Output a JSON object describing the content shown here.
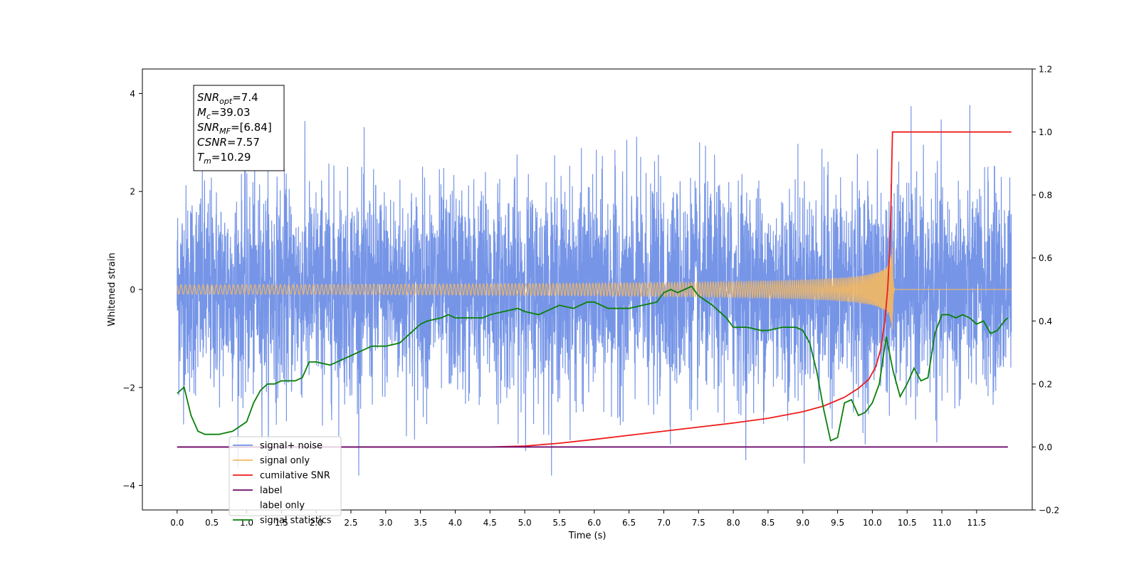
{
  "chart_data": {
    "type": "line",
    "xlabel": "Time (s)",
    "ylabel": "Whitened strain",
    "xlim": [
      -0.5,
      12.3
    ],
    "ylim_left": [
      -4.5,
      4.5
    ],
    "ylim_right": [
      -0.2,
      1.2
    ],
    "x_ticks": [
      "0.0",
      "0.5",
      "1.0",
      "1.5",
      "2.0",
      "2.5",
      "3.0",
      "3.5",
      "4.0",
      "4.5",
      "5.0",
      "5.5",
      "6.0",
      "6.5",
      "7.0",
      "7.5",
      "8.0",
      "8.5",
      "9.0",
      "9.5",
      "10.0",
      "10.5",
      "11.0",
      "11.5"
    ],
    "y_ticks_left": [
      "−4",
      "−2",
      "0",
      "2",
      "4"
    ],
    "y_ticks_right": [
      "−0.2",
      "0.0",
      "0.2",
      "0.4",
      "0.6",
      "0.8",
      "1.0",
      "1.2"
    ],
    "grid": false,
    "legend_location": "lower-left",
    "annotation": {
      "lines": [
        {
          "sym": "SNR",
          "sub": "opt",
          "val": "=7.4"
        },
        {
          "sym": "M",
          "sub": "c",
          "val": "=39.03"
        },
        {
          "sym": "SNR",
          "sub": "MF",
          "val": "=[6.84]"
        },
        {
          "sym": "CSNR",
          "sub": "",
          "val": "=7.57"
        },
        {
          "sym": "T",
          "sub": "m",
          "val": "=10.29"
        }
      ]
    },
    "series": [
      {
        "name": "signal+ noise",
        "axis": "left",
        "color": "#6f8fe6",
        "kind": "noise",
        "x_range": [
          0.0,
          12.0
        ],
        "amplitude_range": [
          -3.8,
          4.1
        ]
      },
      {
        "name": "signal only",
        "axis": "left",
        "color": "#f5b860",
        "kind": "chirp",
        "x_range": [
          0.0,
          12.0
        ],
        "merger_time": 10.29,
        "peak_amplitude": 0.85
      },
      {
        "name": "cumilative SNR",
        "axis": "right",
        "color": "#ee1c1c",
        "x": [
          0.0,
          4.5,
          5.0,
          5.5,
          6.0,
          6.5,
          7.0,
          7.5,
          8.0,
          8.5,
          9.0,
          9.3,
          9.6,
          9.8,
          9.95,
          10.05,
          10.12,
          10.18,
          10.22,
          10.25,
          10.27,
          10.28,
          10.29,
          10.32,
          12.0
        ],
        "y": [
          0.0,
          0.0,
          0.003,
          0.012,
          0.024,
          0.037,
          0.05,
          0.063,
          0.076,
          0.091,
          0.112,
          0.13,
          0.158,
          0.186,
          0.215,
          0.255,
          0.31,
          0.4,
          0.5,
          0.62,
          0.78,
          0.9,
          1.0,
          1.0,
          1.0
        ]
      },
      {
        "name": "label",
        "axis": "right",
        "color": "#6d0a6d",
        "x": [
          0.0,
          11.95
        ],
        "y": [
          0.0,
          0.0
        ]
      },
      {
        "name": "label only",
        "axis": "right",
        "color": "#000000",
        "hidden": true,
        "x": [],
        "y": []
      },
      {
        "name": "signal statistics",
        "axis": "right",
        "color": "#0a800a",
        "x": [
          0.0,
          0.1,
          0.2,
          0.3,
          0.4,
          0.5,
          0.6,
          0.7,
          0.8,
          0.9,
          1.0,
          1.1,
          1.2,
          1.3,
          1.4,
          1.5,
          1.6,
          1.7,
          1.8,
          1.9,
          2.0,
          2.2,
          2.4,
          2.5,
          2.6,
          2.8,
          3.0,
          3.2,
          3.4,
          3.5,
          3.6,
          3.8,
          3.9,
          4.0,
          4.2,
          4.4,
          4.5,
          4.7,
          4.9,
          5.0,
          5.2,
          5.4,
          5.5,
          5.7,
          5.9,
          6.0,
          6.2,
          6.4,
          6.5,
          6.7,
          6.9,
          7.0,
          7.1,
          7.2,
          7.3,
          7.4,
          7.5,
          7.7,
          7.9,
          8.0,
          8.2,
          8.4,
          8.5,
          8.7,
          8.9,
          9.0,
          9.1,
          9.2,
          9.3,
          9.4,
          9.5,
          9.6,
          9.7,
          9.8,
          9.9,
          10.0,
          10.1,
          10.2,
          10.3,
          10.4,
          10.5,
          10.6,
          10.7,
          10.8,
          10.9,
          11.0,
          11.1,
          11.2,
          11.3,
          11.4,
          11.5,
          11.6,
          11.7,
          11.8,
          11.9,
          11.95
        ],
        "y": [
          0.17,
          0.19,
          0.1,
          0.05,
          0.04,
          0.04,
          0.04,
          0.045,
          0.05,
          0.065,
          0.08,
          0.14,
          0.18,
          0.2,
          0.2,
          0.21,
          0.21,
          0.21,
          0.22,
          0.27,
          0.27,
          0.26,
          0.28,
          0.29,
          0.3,
          0.32,
          0.32,
          0.33,
          0.37,
          0.39,
          0.4,
          0.41,
          0.42,
          0.41,
          0.41,
          0.41,
          0.42,
          0.43,
          0.44,
          0.43,
          0.42,
          0.44,
          0.45,
          0.44,
          0.46,
          0.46,
          0.44,
          0.44,
          0.44,
          0.45,
          0.46,
          0.49,
          0.5,
          0.49,
          0.5,
          0.51,
          0.48,
          0.45,
          0.41,
          0.38,
          0.38,
          0.37,
          0.37,
          0.38,
          0.38,
          0.37,
          0.33,
          0.24,
          0.12,
          0.02,
          0.03,
          0.14,
          0.15,
          0.1,
          0.11,
          0.14,
          0.2,
          0.35,
          0.24,
          0.16,
          0.2,
          0.25,
          0.21,
          0.22,
          0.36,
          0.42,
          0.42,
          0.41,
          0.42,
          0.41,
          0.39,
          0.4,
          0.36,
          0.37,
          0.4,
          0.41
        ]
      }
    ]
  }
}
